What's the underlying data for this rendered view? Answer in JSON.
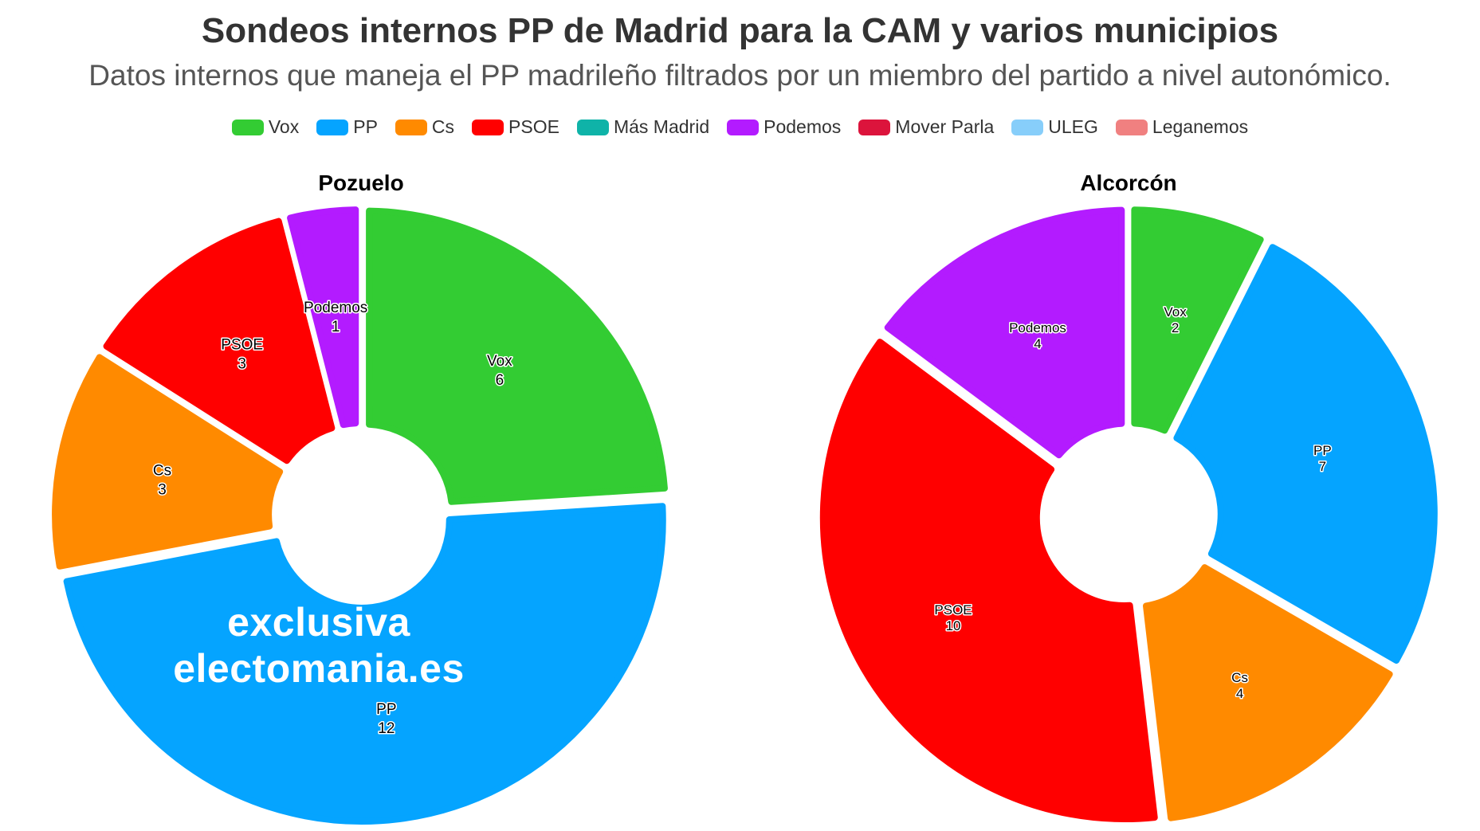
{
  "title": "Sondeos internos PP de Madrid para la CAM y varios municipios",
  "subtitle": "Datos internos que maneja el PP madrileño filtrados por un miembro del partido a nivel autonómico.",
  "legend": [
    {
      "name": "Vox",
      "color": "#33cc33"
    },
    {
      "name": "PP",
      "color": "#05a4ff"
    },
    {
      "name": "Cs",
      "color": "#ff8a00"
    },
    {
      "name": "PSOE",
      "color": "#ff0000"
    },
    {
      "name": "Más Madrid",
      "color": "#0fb3a8"
    },
    {
      "name": "Podemos",
      "color": "#b31bff"
    },
    {
      "name": "Mover Parla",
      "color": "#dc143c"
    },
    {
      "name": "ULEG",
      "color": "#87cefa"
    },
    {
      "name": "Leganemos",
      "color": "#f08080"
    }
  ],
  "watermark": "exclusiva electomania.es",
  "chart_data": [
    {
      "type": "pie",
      "title": "Pozuelo",
      "categories": [
        "Vox",
        "PP",
        "Cs",
        "PSOE",
        "Podemos"
      ],
      "values": [
        6,
        12,
        3,
        3,
        1
      ],
      "colors": [
        "#33cc33",
        "#05a4ff",
        "#ff8a00",
        "#ff0000",
        "#b31bff"
      ]
    },
    {
      "type": "pie",
      "title": "Alcorcón",
      "categories": [
        "Vox",
        "PP",
        "Cs",
        "PSOE",
        "Podemos"
      ],
      "values": [
        2,
        7,
        4,
        10,
        4
      ],
      "colors": [
        "#33cc33",
        "#05a4ff",
        "#ff8a00",
        "#ff0000",
        "#b31bff"
      ]
    }
  ]
}
